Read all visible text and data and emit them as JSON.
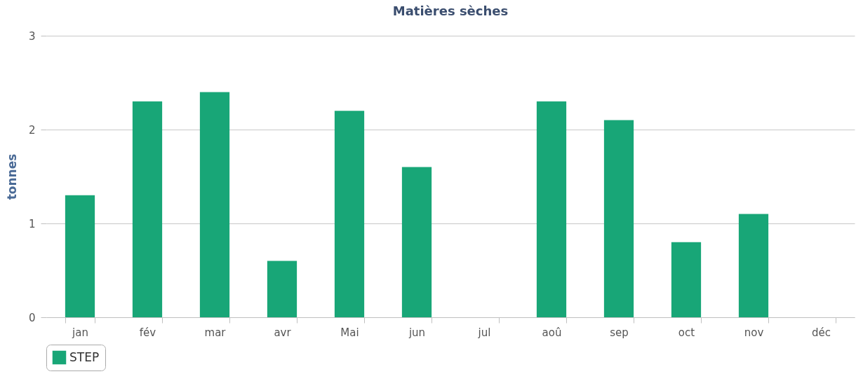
{
  "chart_data": {
    "type": "bar",
    "title": "Matières sèches",
    "ylabel": "tonnes",
    "categories": [
      "jan",
      "fév",
      "mar",
      "avr",
      "Mai",
      "jun",
      "jul",
      "aoû",
      "sep",
      "oct",
      "nov",
      "déc"
    ],
    "series": [
      {
        "name": "STEP",
        "color": "#18a677",
        "values": [
          1.3,
          2.3,
          2.4,
          0.6,
          2.2,
          1.6,
          null,
          2.3,
          2.1,
          0.8,
          1.1,
          null
        ]
      }
    ],
    "ylim": [
      0,
      3
    ],
    "yticks": [
      0,
      1,
      2,
      3
    ],
    "grid": "y",
    "legend": "bottom"
  }
}
